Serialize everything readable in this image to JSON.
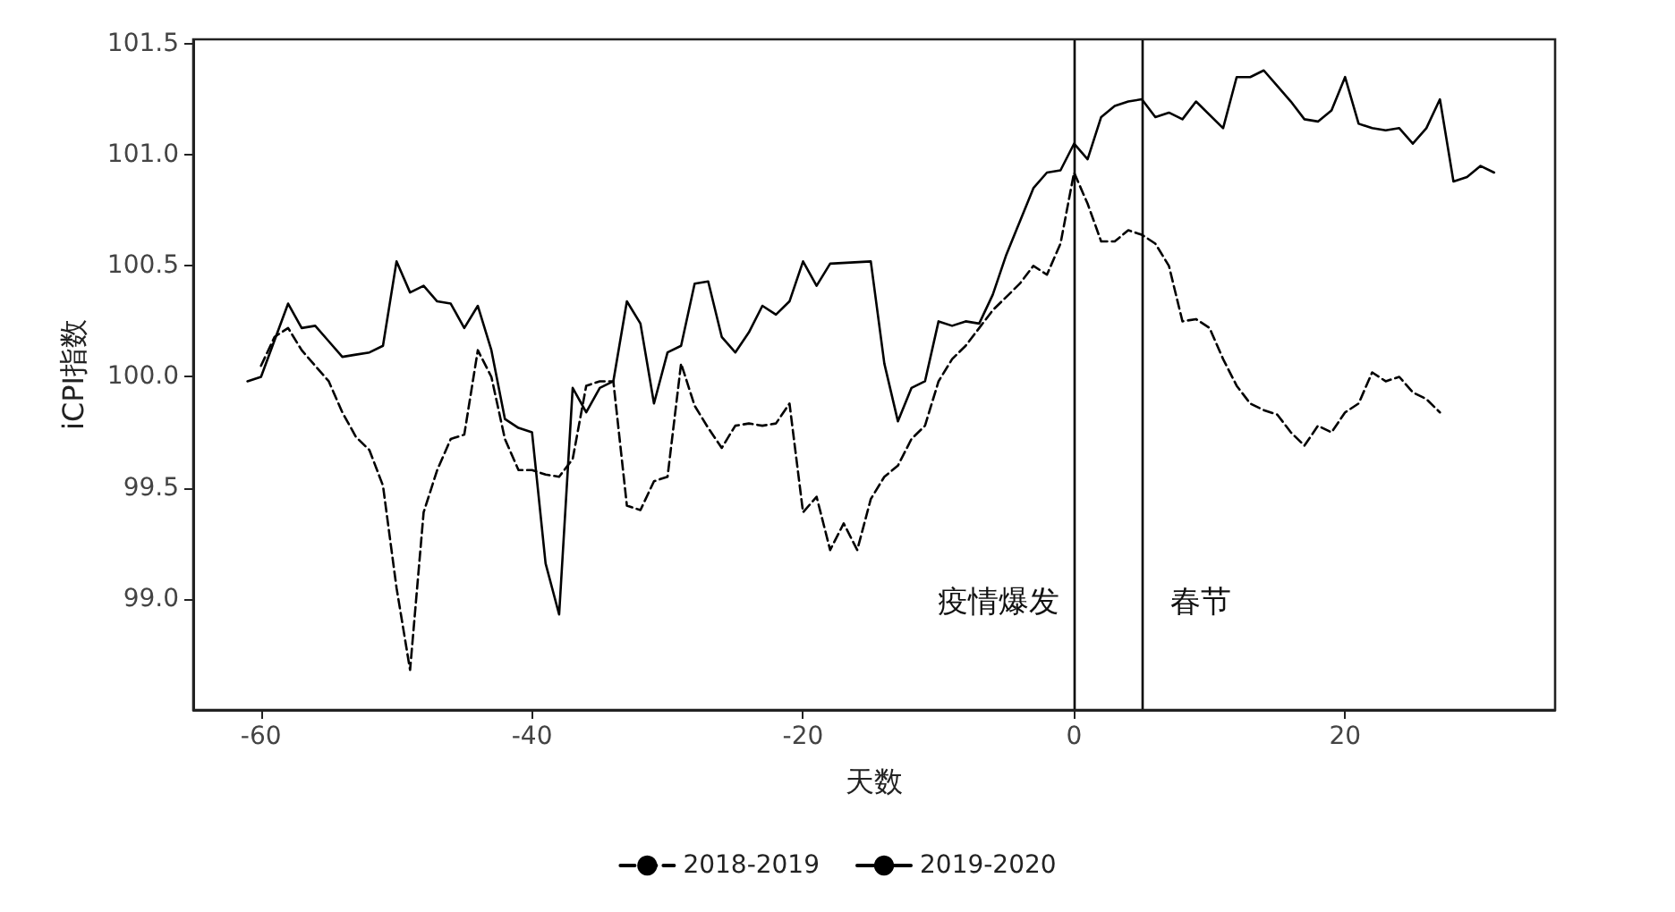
{
  "chart_data": {
    "type": "line",
    "xlabel": "天数",
    "ylabel": "iCPI指数",
    "xlim": [
      -65,
      35.5
    ],
    "ylim": [
      98.5,
      101.52
    ],
    "xticks": [
      -60,
      -40,
      -20,
      0,
      20
    ],
    "yticks": [
      {
        "value": 99,
        "label": "99.0"
      },
      {
        "value": 99.5,
        "label": "99.5"
      },
      {
        "value": 100,
        "label": "100.0"
      },
      {
        "value": 100.5,
        "label": "100.5"
      },
      {
        "value": 101,
        "label": "101.0"
      },
      {
        "value": 101.5,
        "label": "101.5"
      }
    ],
    "grid": false,
    "legend": "bottom",
    "marker": "none",
    "ref_lines": [
      {
        "axis": "x",
        "value": 0,
        "label": "疫情爆发",
        "color": "#000000"
      },
      {
        "axis": "x",
        "value": 5,
        "label": "春节",
        "color": "#000000"
      }
    ],
    "series": [
      {
        "name": "2018-2019",
        "color": "#000000",
        "line_style": "dashed",
        "x": [
          -60,
          -59,
          -58,
          -57,
          -56,
          -55,
          -54,
          -53,
          -52,
          -51,
          -50,
          -49,
          -48,
          -47,
          -46,
          -45,
          -44,
          -43,
          -42,
          -41,
          -40,
          -39,
          -38,
          -37,
          -36,
          -35,
          -34,
          -33,
          -32,
          -31,
          -30,
          -29,
          -28,
          -27,
          -26,
          -25,
          -24,
          -23,
          -22,
          -21,
          -20,
          -19,
          -18,
          -17,
          -16,
          -15,
          -14,
          -13,
          -12,
          -11,
          -10,
          -9,
          -8,
          -7,
          -6,
          -5,
          -4,
          -3,
          -2,
          -1,
          0,
          1,
          2,
          3,
          4,
          5,
          6,
          7,
          8,
          9,
          10,
          11,
          12,
          13,
          14,
          15,
          16,
          17,
          18,
          19,
          20,
          21,
          22,
          23,
          24,
          25,
          26,
          27
        ],
        "values": [
          100.05,
          100.18,
          100.22,
          100.12,
          100.05,
          99.98,
          99.84,
          99.73,
          99.67,
          99.51,
          99.05,
          98.68,
          99.39,
          99.58,
          99.72,
          99.74,
          100.12,
          100.0,
          99.72,
          99.58,
          99.58,
          99.56,
          99.55,
          99.63,
          99.96,
          99.98,
          99.98,
          99.42,
          99.4,
          99.53,
          99.55,
          100.06,
          99.87,
          99.77,
          99.68,
          99.78,
          99.79,
          99.78,
          99.79,
          99.88,
          99.39,
          99.46,
          99.22,
          99.34,
          99.22,
          99.45,
          99.55,
          99.6,
          99.72,
          99.78,
          99.98,
          100.08,
          100.14,
          100.22,
          100.3,
          100.36,
          100.42,
          100.5,
          100.46,
          100.6,
          100.92,
          100.78,
          100.61,
          100.61,
          100.66,
          100.64,
          100.6,
          100.5,
          100.25,
          100.26,
          100.22,
          100.08,
          99.96,
          99.88,
          99.85,
          99.83,
          99.75,
          99.69,
          99.78,
          99.75,
          99.84,
          99.88,
          100.02,
          99.98,
          100.0,
          99.93,
          99.9,
          99.84
        ]
      },
      {
        "name": "2019-2020",
        "color": "#000000",
        "line_style": "solid",
        "x": [
          -61,
          -60,
          -58,
          -57,
          -56,
          -55,
          -54,
          -53,
          -52,
          -51,
          -50,
          -49,
          -48,
          -47,
          -46,
          -45,
          -44,
          -43,
          -42,
          -41,
          -40,
          -39,
          -38,
          -37,
          -36,
          -35,
          -34,
          -33,
          -32,
          -31,
          -30,
          -29,
          -28,
          -27,
          -26,
          -25,
          -24,
          -23,
          -22,
          -21,
          -20,
          -19,
          -18,
          -15,
          -14,
          -13,
          -12,
          -11,
          -10,
          -9,
          -8,
          -7,
          -6,
          -5,
          -4,
          -3,
          -2,
          -1,
          0,
          1,
          2,
          3,
          4,
          5,
          6,
          7,
          8,
          9,
          11,
          12,
          13,
          14,
          15,
          16,
          17,
          18,
          19,
          20,
          21,
          22,
          23,
          24,
          25,
          26,
          27,
          28,
          29,
          30,
          31
        ],
        "values": [
          99.98,
          100.0,
          100.33,
          100.22,
          100.23,
          100.16,
          100.09,
          100.1,
          100.11,
          100.14,
          100.52,
          100.38,
          100.41,
          100.34,
          100.33,
          100.22,
          100.32,
          100.12,
          99.81,
          99.77,
          99.75,
          99.16,
          98.93,
          99.95,
          99.84,
          99.95,
          99.98,
          100.34,
          100.24,
          99.88,
          100.11,
          100.14,
          100.42,
          100.43,
          100.18,
          100.11,
          100.2,
          100.32,
          100.28,
          100.34,
          100.52,
          100.41,
          100.51,
          100.52,
          100.06,
          99.8,
          99.95,
          99.98,
          100.25,
          100.23,
          100.25,
          100.24,
          100.37,
          100.55,
          100.7,
          100.85,
          100.92,
          100.93,
          101.05,
          100.98,
          101.17,
          101.22,
          101.24,
          101.25,
          101.17,
          101.19,
          101.16,
          101.24,
          101.12,
          101.35,
          101.35,
          101.38,
          101.31,
          101.24,
          101.16,
          101.15,
          101.2,
          101.35,
          101.14,
          101.12,
          101.11,
          101.12,
          101.05,
          101.12,
          101.25,
          100.88,
          100.9,
          100.95,
          100.92
        ]
      }
    ]
  }
}
